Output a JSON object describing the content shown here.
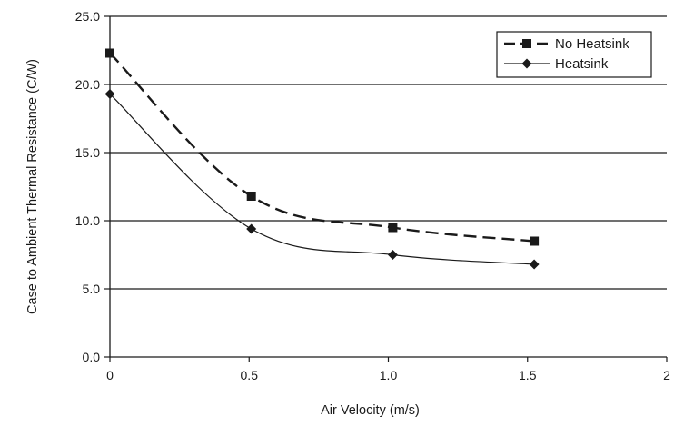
{
  "chart_data": {
    "type": "line",
    "title": "",
    "xlabel": "Air  Velocity (m/s)",
    "ylabel": "Case to Ambient Thermal Resistance (C/W)",
    "xlim": [
      0,
      2
    ],
    "ylim": [
      0,
      25
    ],
    "x_ticks": [
      "0",
      "0.5",
      "1.0",
      "1.5",
      "2"
    ],
    "y_ticks": [
      "0.0",
      "5.0",
      "10.0",
      "15.0",
      "20.0",
      "25.0"
    ],
    "grid": "horizontal",
    "legend_position": "top-right",
    "series": [
      {
        "name": "No Heatsink",
        "line_style": "dashed",
        "marker": "square",
        "color": "#1a1a1a",
        "points": [
          [
            0,
            22.3
          ],
          [
            0.508,
            11.8
          ],
          [
            1.016,
            9.5
          ],
          [
            1.524,
            8.5
          ]
        ]
      },
      {
        "name": "Heatsink",
        "line_style": "solid",
        "marker": "diamond",
        "color": "#1a1a1a",
        "points": [
          [
            0,
            19.3
          ],
          [
            0.508,
            9.4
          ],
          [
            1.016,
            7.5
          ],
          [
            1.524,
            6.8
          ]
        ]
      }
    ]
  }
}
